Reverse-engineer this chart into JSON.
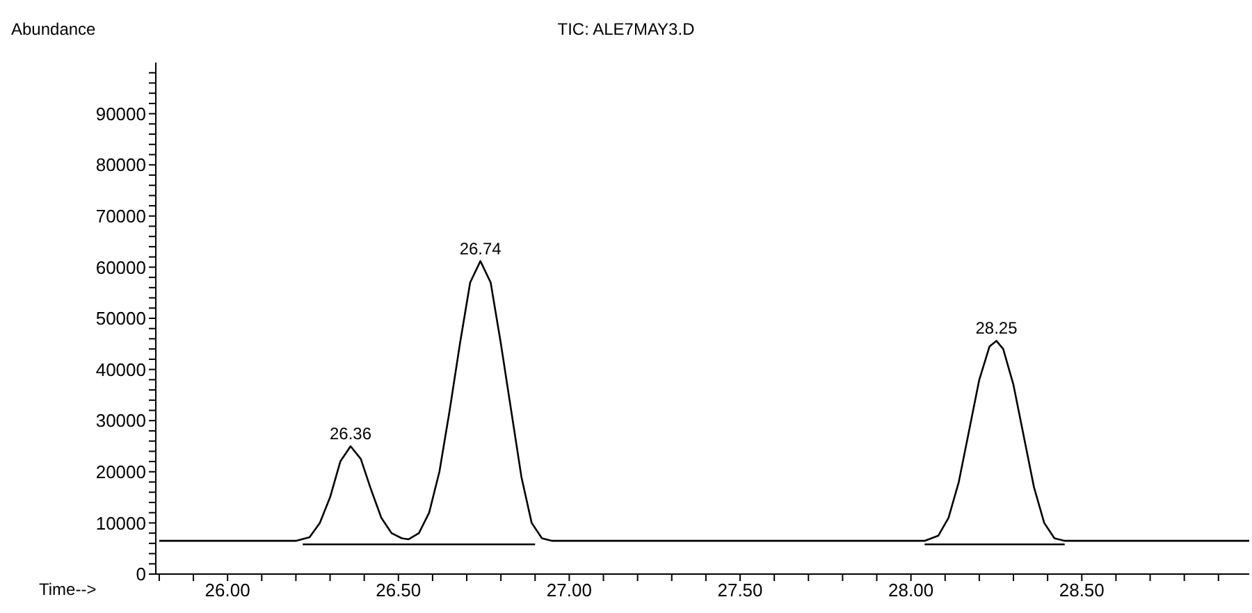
{
  "chart_data": {
    "type": "line",
    "title": "TIC: ALE7MAY3.D",
    "ylabel": "Abundance",
    "xlabel": "Time-->",
    "xlim": [
      25.79,
      28.99
    ],
    "xticks": [
      {
        "value": 25.8,
        "label": null
      },
      {
        "value": 25.9,
        "label": null
      },
      {
        "value": 26,
        "label": "26.00"
      },
      {
        "value": 26.1,
        "label": null
      },
      {
        "value": 26.2,
        "label": null
      },
      {
        "value": 26.3,
        "label": null
      },
      {
        "value": 26.4,
        "label": null
      },
      {
        "value": 26.5,
        "label": "26.50"
      },
      {
        "value": 26.6,
        "label": null
      },
      {
        "value": 26.7,
        "label": null
      },
      {
        "value": 26.8,
        "label": null
      },
      {
        "value": 26.9,
        "label": null
      },
      {
        "value": 27,
        "label": "27.00"
      },
      {
        "value": 27.1,
        "label": null
      },
      {
        "value": 27.2,
        "label": null
      },
      {
        "value": 27.3,
        "label": null
      },
      {
        "value": 27.4,
        "label": null
      },
      {
        "value": 27.5,
        "label": "27.50"
      },
      {
        "value": 27.6,
        "label": null
      },
      {
        "value": 27.7,
        "label": null
      },
      {
        "value": 27.8,
        "label": null
      },
      {
        "value": 27.9,
        "label": null
      },
      {
        "value": 28,
        "label": "28.00"
      },
      {
        "value": 28.1,
        "label": null
      },
      {
        "value": 28.2,
        "label": null
      },
      {
        "value": 28.3,
        "label": null
      },
      {
        "value": 28.4,
        "label": null
      },
      {
        "value": 28.5,
        "label": "28.50"
      },
      {
        "value": 28.6,
        "label": null
      },
      {
        "value": 28.7,
        "label": null
      },
      {
        "value": 28.8,
        "label": null
      },
      {
        "value": 28.9,
        "label": null
      }
    ],
    "ylim": [
      0,
      100000
    ],
    "yticks": [
      0,
      {
        "value": 2000,
        "label": null
      },
      {
        "value": 4000,
        "label": null
      },
      {
        "value": 6000,
        "label": null
      },
      {
        "value": 8000,
        "label": null
      },
      10000,
      {
        "value": 12000,
        "label": null
      },
      {
        "value": 14000,
        "label": null
      },
      {
        "value": 16000,
        "label": null
      },
      {
        "value": 18000,
        "label": null
      },
      20000,
      {
        "value": 22000,
        "label": null
      },
      {
        "value": 24000,
        "label": null
      },
      {
        "value": 26000,
        "label": null
      },
      {
        "value": 28000,
        "label": null
      },
      30000,
      {
        "value": 32000,
        "label": null
      },
      {
        "value": 34000,
        "label": null
      },
      {
        "value": 36000,
        "label": null
      },
      {
        "value": 38000,
        "label": null
      },
      40000,
      {
        "value": 42000,
        "label": null
      },
      {
        "value": 44000,
        "label": null
      },
      {
        "value": 46000,
        "label": null
      },
      {
        "value": 48000,
        "label": null
      },
      50000,
      {
        "value": 52000,
        "label": null
      },
      {
        "value": 54000,
        "label": null
      },
      {
        "value": 56000,
        "label": null
      },
      {
        "value": 58000,
        "label": null
      },
      60000,
      {
        "value": 62000,
        "label": null
      },
      {
        "value": 64000,
        "label": null
      },
      {
        "value": 66000,
        "label": null
      },
      {
        "value": 68000,
        "label": null
      },
      70000,
      {
        "value": 72000,
        "label": null
      },
      {
        "value": 74000,
        "label": null
      },
      {
        "value": 76000,
        "label": null
      },
      {
        "value": 78000,
        "label": null
      },
      80000,
      {
        "value": 82000,
        "label": null
      },
      {
        "value": 84000,
        "label": null
      },
      {
        "value": 86000,
        "label": null
      },
      {
        "value": 88000,
        "label": null
      },
      90000,
      {
        "value": 92000,
        "label": null
      },
      {
        "value": 94000,
        "label": null
      },
      {
        "value": 96000,
        "label": null
      },
      {
        "value": 98000,
        "label": null
      }
    ],
    "marker": "none",
    "line_style": "solid",
    "series": [
      {
        "color": "#000000",
        "x": [
          25.8,
          26.0,
          26.2,
          26.24,
          26.27,
          26.3,
          26.33,
          26.36,
          26.39,
          26.42,
          26.45,
          26.48,
          26.51,
          26.53,
          26.56,
          26.59,
          26.62,
          26.65,
          26.68,
          26.71,
          26.74,
          26.77,
          26.8,
          26.83,
          26.86,
          26.89,
          26.92,
          26.95,
          27.2,
          27.5,
          27.8,
          28.04,
          28.08,
          28.11,
          28.14,
          28.17,
          28.2,
          28.23,
          28.25,
          28.27,
          28.3,
          28.33,
          28.36,
          28.39,
          28.42,
          28.45,
          28.7,
          28.99
        ],
        "values": [
          6500,
          6500,
          6500,
          7200,
          10000,
          15000,
          22000,
          25000,
          22500,
          16500,
          11000,
          8000,
          7000,
          6800,
          8000,
          12000,
          20000,
          32000,
          45000,
          57000,
          61200,
          57000,
          45000,
          32000,
          19000,
          10000,
          7000,
          6500,
          6500,
          6500,
          6500,
          6500,
          7500,
          11000,
          18000,
          28000,
          38000,
          44500,
          45600,
          44000,
          37000,
          27000,
          17000,
          10000,
          7000,
          6500,
          6500,
          6500
        ]
      },
      {
        "color": "#000000",
        "x": [
          26.22,
          26.9
        ],
        "values": [
          5800,
          5800
        ]
      },
      {
        "color": "#000000",
        "x": [
          28.04,
          28.45
        ],
        "values": [
          5800,
          5800
        ]
      }
    ],
    "annotations": [
      {
        "text": "26.36",
        "x": 26.36,
        "y": 25000
      },
      {
        "text": "26.74",
        "x": 26.74,
        "y": 61200
      },
      {
        "text": "28.25",
        "x": 28.25,
        "y": 45600
      }
    ]
  }
}
